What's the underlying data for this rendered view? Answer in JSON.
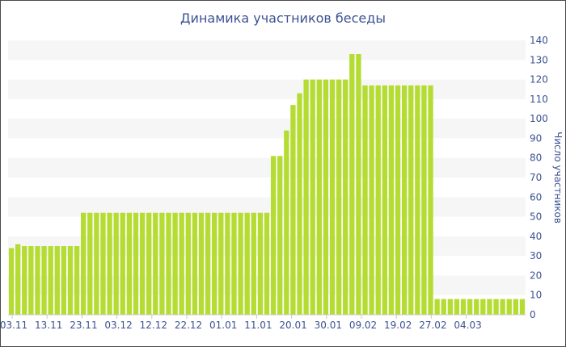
{
  "chart_data": {
    "type": "bar",
    "title": "Динамика участников беседы",
    "ylabel": "Число участников",
    "xlabel": "",
    "ylim": [
      0,
      140
    ],
    "y_ticks": [
      0,
      10,
      20,
      30,
      40,
      50,
      60,
      70,
      80,
      90,
      100,
      110,
      120,
      130,
      140
    ],
    "x_tick_labels": [
      "03.11",
      "13.11",
      "23.11",
      "03.12",
      "12.12",
      "22.12",
      "01.01",
      "11.01",
      "20.01",
      "30.01",
      "09.02",
      "19.02",
      "27.02",
      "04.03"
    ],
    "grid": "horizontal alternating bands",
    "bar_color": "#b5dc32",
    "band_color": "#f6f6f6",
    "values": [
      34,
      36,
      35,
      35,
      35,
      35,
      35,
      35,
      35,
      35,
      35,
      52,
      52,
      52,
      52,
      52,
      52,
      52,
      52,
      52,
      52,
      52,
      52,
      52,
      52,
      52,
      52,
      52,
      52,
      52,
      52,
      52,
      52,
      52,
      52,
      52,
      52,
      52,
      52,
      52,
      81,
      81,
      94,
      107,
      113,
      120,
      120,
      120,
      120,
      120,
      120,
      120,
      133,
      133,
      117,
      117,
      117,
      117,
      117,
      117,
      117,
      117,
      117,
      117,
      117,
      8,
      8,
      8,
      8,
      8,
      8,
      8,
      8,
      8,
      8,
      8,
      8,
      8,
      8
    ]
  }
}
